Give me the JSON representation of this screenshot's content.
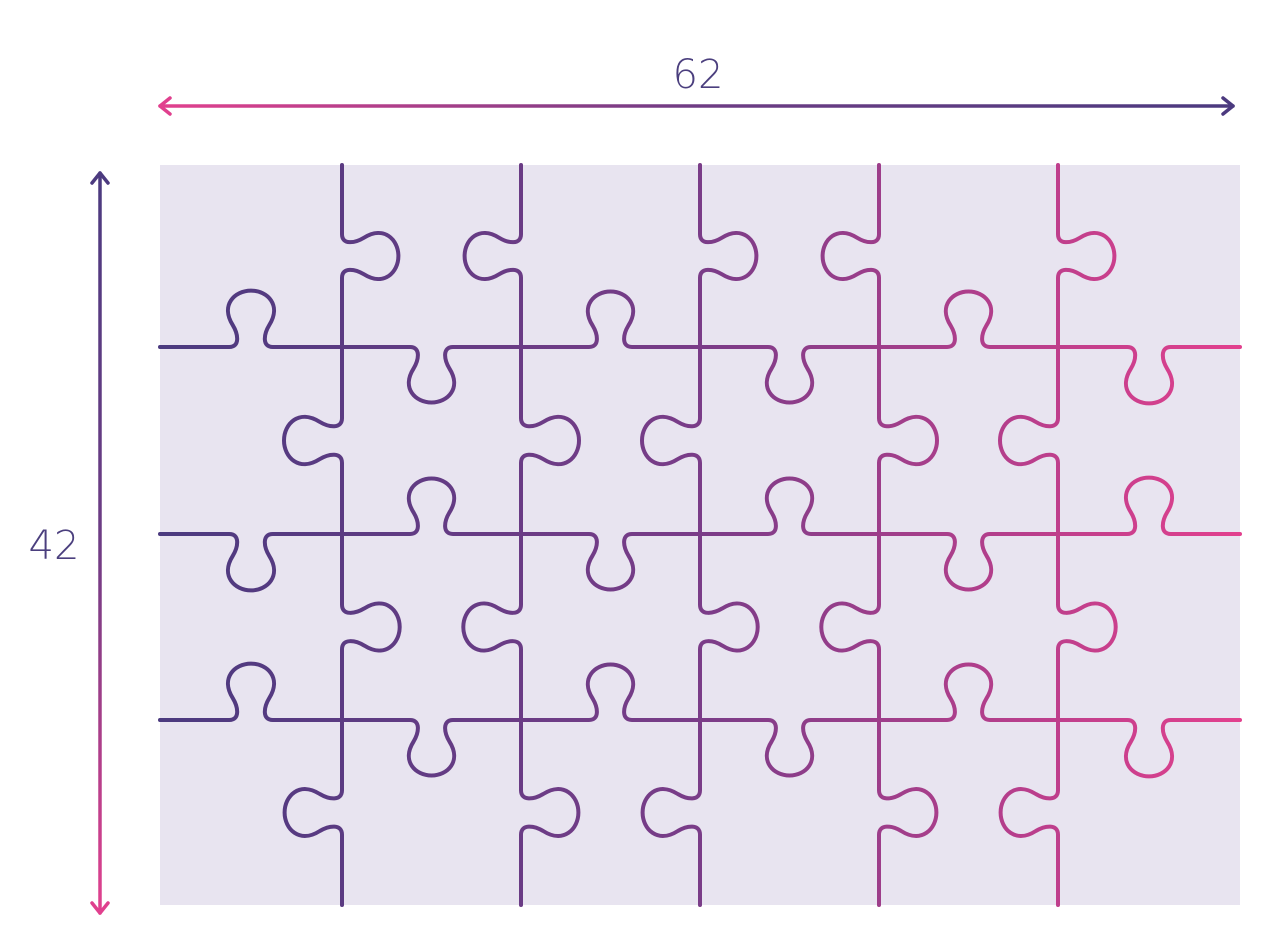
{
  "diagram": {
    "width_label": "62",
    "height_label": "42",
    "grid": {
      "columns": 6,
      "rows": 4
    },
    "colors": {
      "board": "#e8e4f0",
      "purple": "#4b3a7f",
      "magenta": "#8b3f8a",
      "pink": "#e2408e",
      "label": "#4b3f7e"
    }
  }
}
